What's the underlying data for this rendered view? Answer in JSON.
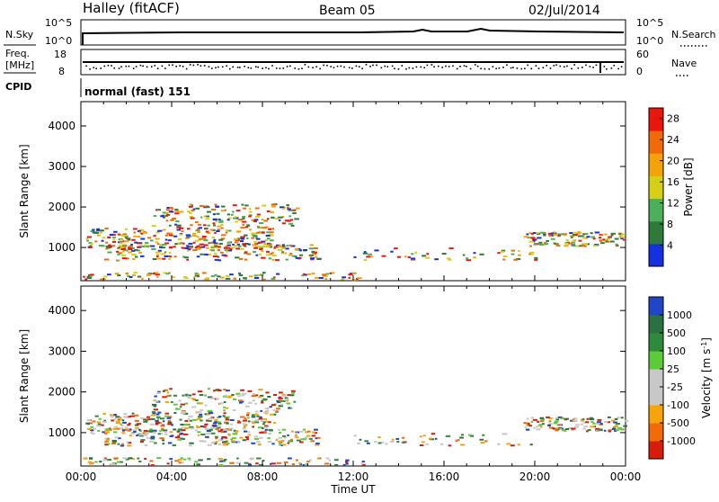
{
  "header": {
    "station": "Halley (fitACF)",
    "beam": "Beam 05",
    "date": "02/Jul/2014"
  },
  "nsky_panel": {
    "left_title": "N.Sky",
    "right_title": "N.Search",
    "left_ticks": [
      "10^5",
      "10^0"
    ],
    "right_ticks": [
      "10^5",
      "10^0"
    ],
    "line_style": "dotted"
  },
  "freq_panel": {
    "left_title_line1": "Freq.",
    "left_title_line2": "[MHz]",
    "right_title": "Nave",
    "left_ticks": [
      "18",
      "8"
    ],
    "right_ticks": [
      "60",
      "0"
    ],
    "line_style": "dotted"
  },
  "cpid_panel": {
    "label": "CPID",
    "value": "normal (fast) 151"
  },
  "colors": {
    "power_scale": [
      "#1430e0",
      "#2e7a3a",
      "#4cb05a",
      "#d6cf18",
      "#f4a20a",
      "#f06a0a",
      "#e8160c"
    ],
    "velocity_scale": [
      "#d81c0c",
      "#f26a0a",
      "#f7a30a",
      "#c8c8c8",
      "#c8c8c8",
      "#5ccb3a",
      "#2f8a3e",
      "#2a7040",
      "#2046c8"
    ]
  },
  "chart_data": [
    {
      "type": "heatmap",
      "quantity": "power",
      "ylabel": "Slant Range [km]",
      "yticks": [
        1000,
        2000,
        3000,
        4000
      ],
      "ylim": [
        180,
        4600
      ],
      "xlim": [
        0,
        24
      ],
      "colorbar_title": "Power [dB]",
      "colorbar_ticks": [
        4,
        8,
        12,
        16,
        20,
        24,
        28
      ],
      "colorbar_range": [
        0,
        30
      ]
    },
    {
      "type": "heatmap",
      "quantity": "velocity",
      "ylabel": "Slant Range [km]",
      "yticks": [
        1000,
        2000,
        3000,
        4000
      ],
      "ylim": [
        180,
        4600
      ],
      "xlim": [
        0,
        24
      ],
      "xticks": [
        "00:00",
        "04:00",
        "08:00",
        "12:00",
        "16:00",
        "20:00",
        "00:00"
      ],
      "xlabel": "Time UT",
      "colorbar_title": "Velocity [m s",
      "colorbar_title_sup": "-1",
      "colorbar_title_close": "]",
      "colorbar_ticks": [
        "1000",
        "500",
        "100",
        "25",
        "-25",
        "-100",
        "-500",
        "-1000"
      ]
    }
  ]
}
